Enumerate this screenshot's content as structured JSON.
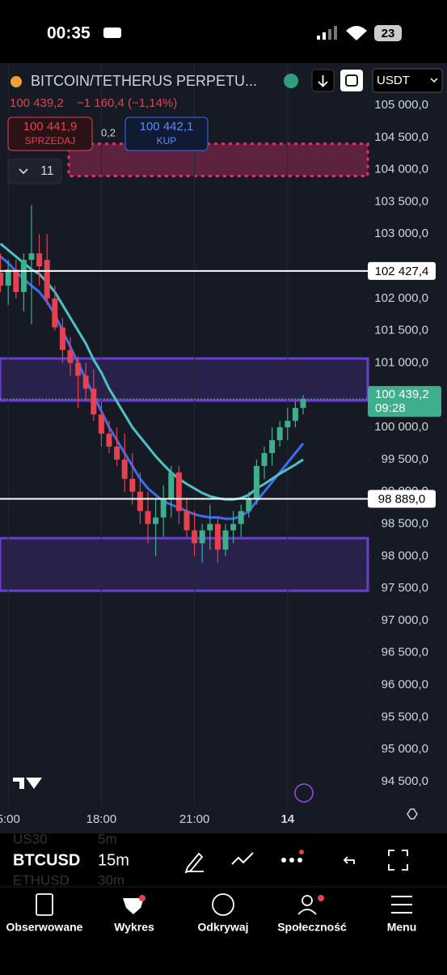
{
  "status_bar": {
    "time": "00:35",
    "battery": "23"
  },
  "header": {
    "symbol": "BITCOIN/TETHERUS PERPETU...",
    "currency": "USDT",
    "last": "100 439,2",
    "change": "−1 160,4 (−1,14%)",
    "sell_price": "100 441,9",
    "sell_label": "SPRZEDAJ",
    "spread": "0,2",
    "buy_price": "100 442,1",
    "buy_label": "KUP",
    "drawings_count": "11"
  },
  "chart_data": {
    "type": "candlestick",
    "ylim": [
      94500,
      105000
    ],
    "yticks": [
      {
        "value": 105000,
        "label": "105 000,0"
      },
      {
        "value": 104500,
        "label": "104 500,0"
      },
      {
        "value": 104000,
        "label": "104 000,0"
      },
      {
        "value": 103500,
        "label": "103 500,0"
      },
      {
        "value": 103000,
        "label": "103 000,0"
      },
      {
        "value": 102000,
        "label": "102 000,0"
      },
      {
        "value": 101500,
        "label": "101 500,0"
      },
      {
        "value": 101000,
        "label": "101 000,0"
      },
      {
        "value": 100000,
        "label": "100 000,0"
      },
      {
        "value": 99500,
        "label": "99 500,0"
      },
      {
        "value": 99000,
        "label": "99 000,0"
      },
      {
        "value": 98500,
        "label": "98 500,0"
      },
      {
        "value": 98000,
        "label": "98 000,0"
      },
      {
        "value": 97500,
        "label": "97 500,0"
      },
      {
        "value": 97000,
        "label": "97 000,0"
      },
      {
        "value": 96500,
        "label": "96 500,0"
      },
      {
        "value": 96000,
        "label": "96 000,0"
      },
      {
        "value": 95500,
        "label": "95 500,0"
      },
      {
        "value": 95000,
        "label": "95 000,0"
      },
      {
        "value": 94500,
        "label": "94 500,0"
      }
    ],
    "xticks": [
      {
        "value": 1,
        "label": "5:00"
      },
      {
        "value": 13,
        "label": "18:00"
      },
      {
        "value": 25,
        "label": "21:00"
      },
      {
        "value": 37,
        "label": "14"
      }
    ],
    "up_color": "#3fae8c",
    "down_color": "#e5414f",
    "open": [
      102400,
      102200,
      102450,
      102100,
      102600,
      102700,
      102600,
      102000,
      101550,
      101200,
      101000,
      100800,
      100600,
      100200,
      99900,
      99700,
      99500,
      99200,
      99000,
      98700,
      98500,
      98600,
      98900,
      99300,
      98700,
      98400,
      98200,
      98400,
      98500,
      98100,
      98400,
      98500,
      98700,
      98900,
      99400,
      99600,
      99800,
      100000,
      100100,
      100300
    ],
    "high": [
      102700,
      102600,
      102600,
      102700,
      103450,
      103000,
      103000,
      102200,
      101700,
      101400,
      101100,
      101000,
      100900,
      100400,
      100100,
      100000,
      99900,
      99600,
      99300,
      99000,
      98900,
      99100,
      99400,
      99400,
      98900,
      98700,
      98500,
      98800,
      98600,
      98500,
      98700,
      98800,
      99000,
      99500,
      99700,
      100000,
      100100,
      100300,
      100400,
      100500
    ],
    "low": [
      102100,
      101900,
      102000,
      101800,
      101600,
      102200,
      101900,
      101500,
      101000,
      100800,
      100300,
      100400,
      100100,
      99700,
      99600,
      99400,
      99000,
      98800,
      98500,
      98200,
      98000,
      98300,
      98600,
      98500,
      98300,
      98000,
      97900,
      98100,
      97900,
      98000,
      98200,
      98300,
      98600,
      98800,
      99200,
      99400,
      99700,
      99800,
      100000,
      100200
    ],
    "close": [
      102200,
      102450,
      102100,
      102600,
      102700,
      102500,
      102000,
      101550,
      101200,
      101000,
      100800,
      100600,
      100200,
      99900,
      99700,
      99500,
      99200,
      99000,
      98700,
      98500,
      98600,
      98900,
      99300,
      98700,
      98400,
      98200,
      98400,
      98500,
      98100,
      98400,
      98500,
      98700,
      98900,
      99400,
      99600,
      99800,
      100000,
      100100,
      100300,
      100439.2
    ],
    "series": [
      {
        "color": "#3d6df2",
        "values": [
          102650,
          102550,
          102420,
          102300,
          102200,
          102100,
          101950,
          101750,
          101500,
          101250,
          101000,
          100750,
          100500,
          100250,
          100000,
          99800,
          99600,
          99400,
          99200,
          99050,
          98950,
          98850,
          98800,
          98750,
          98700,
          98650,
          98620,
          98600,
          98600,
          98580,
          98580,
          98620,
          98700,
          98850,
          99000,
          99150,
          99300,
          99450,
          99600,
          99750
        ]
      },
      {
        "color": "#4fc1c6",
        "values": [
          102850,
          102750,
          102650,
          102550,
          102450,
          102380,
          102250,
          102100,
          101900,
          101700,
          101500,
          101300,
          101050,
          100850,
          100600,
          100400,
          100200,
          100000,
          99850,
          99700,
          99550,
          99420,
          99300,
          99200,
          99120,
          99050,
          98980,
          98930,
          98900,
          98880,
          98880,
          98900,
          98950,
          99050,
          99120,
          99200,
          99280,
          99350,
          99420,
          99500
        ]
      }
    ],
    "zones": [
      {
        "from": 103900,
        "to": 104400,
        "color": "#e0336e"
      },
      {
        "from": 100415,
        "to": 101068,
        "color": "#6a3fd0"
      },
      {
        "from": 97462,
        "to": 98279,
        "color": "#6a3fd0"
      }
    ],
    "price_lines": [
      {
        "value": 102427.4,
        "label": "102 427,4"
      },
      {
        "value": 98889.0,
        "label": "98 889,0"
      }
    ],
    "last_price": {
      "value": 100439.2,
      "label": "100 439,2",
      "countdown": "09:28"
    }
  },
  "toolbar": {
    "symbol": "BTCUSD",
    "interval": "15m",
    "behind": [
      "US30",
      "5m",
      "ETHUSD",
      "30m"
    ]
  },
  "nav": [
    "Obserwowane",
    "Wykres",
    "Odkrywaj",
    "Społeczność",
    "Menu"
  ]
}
